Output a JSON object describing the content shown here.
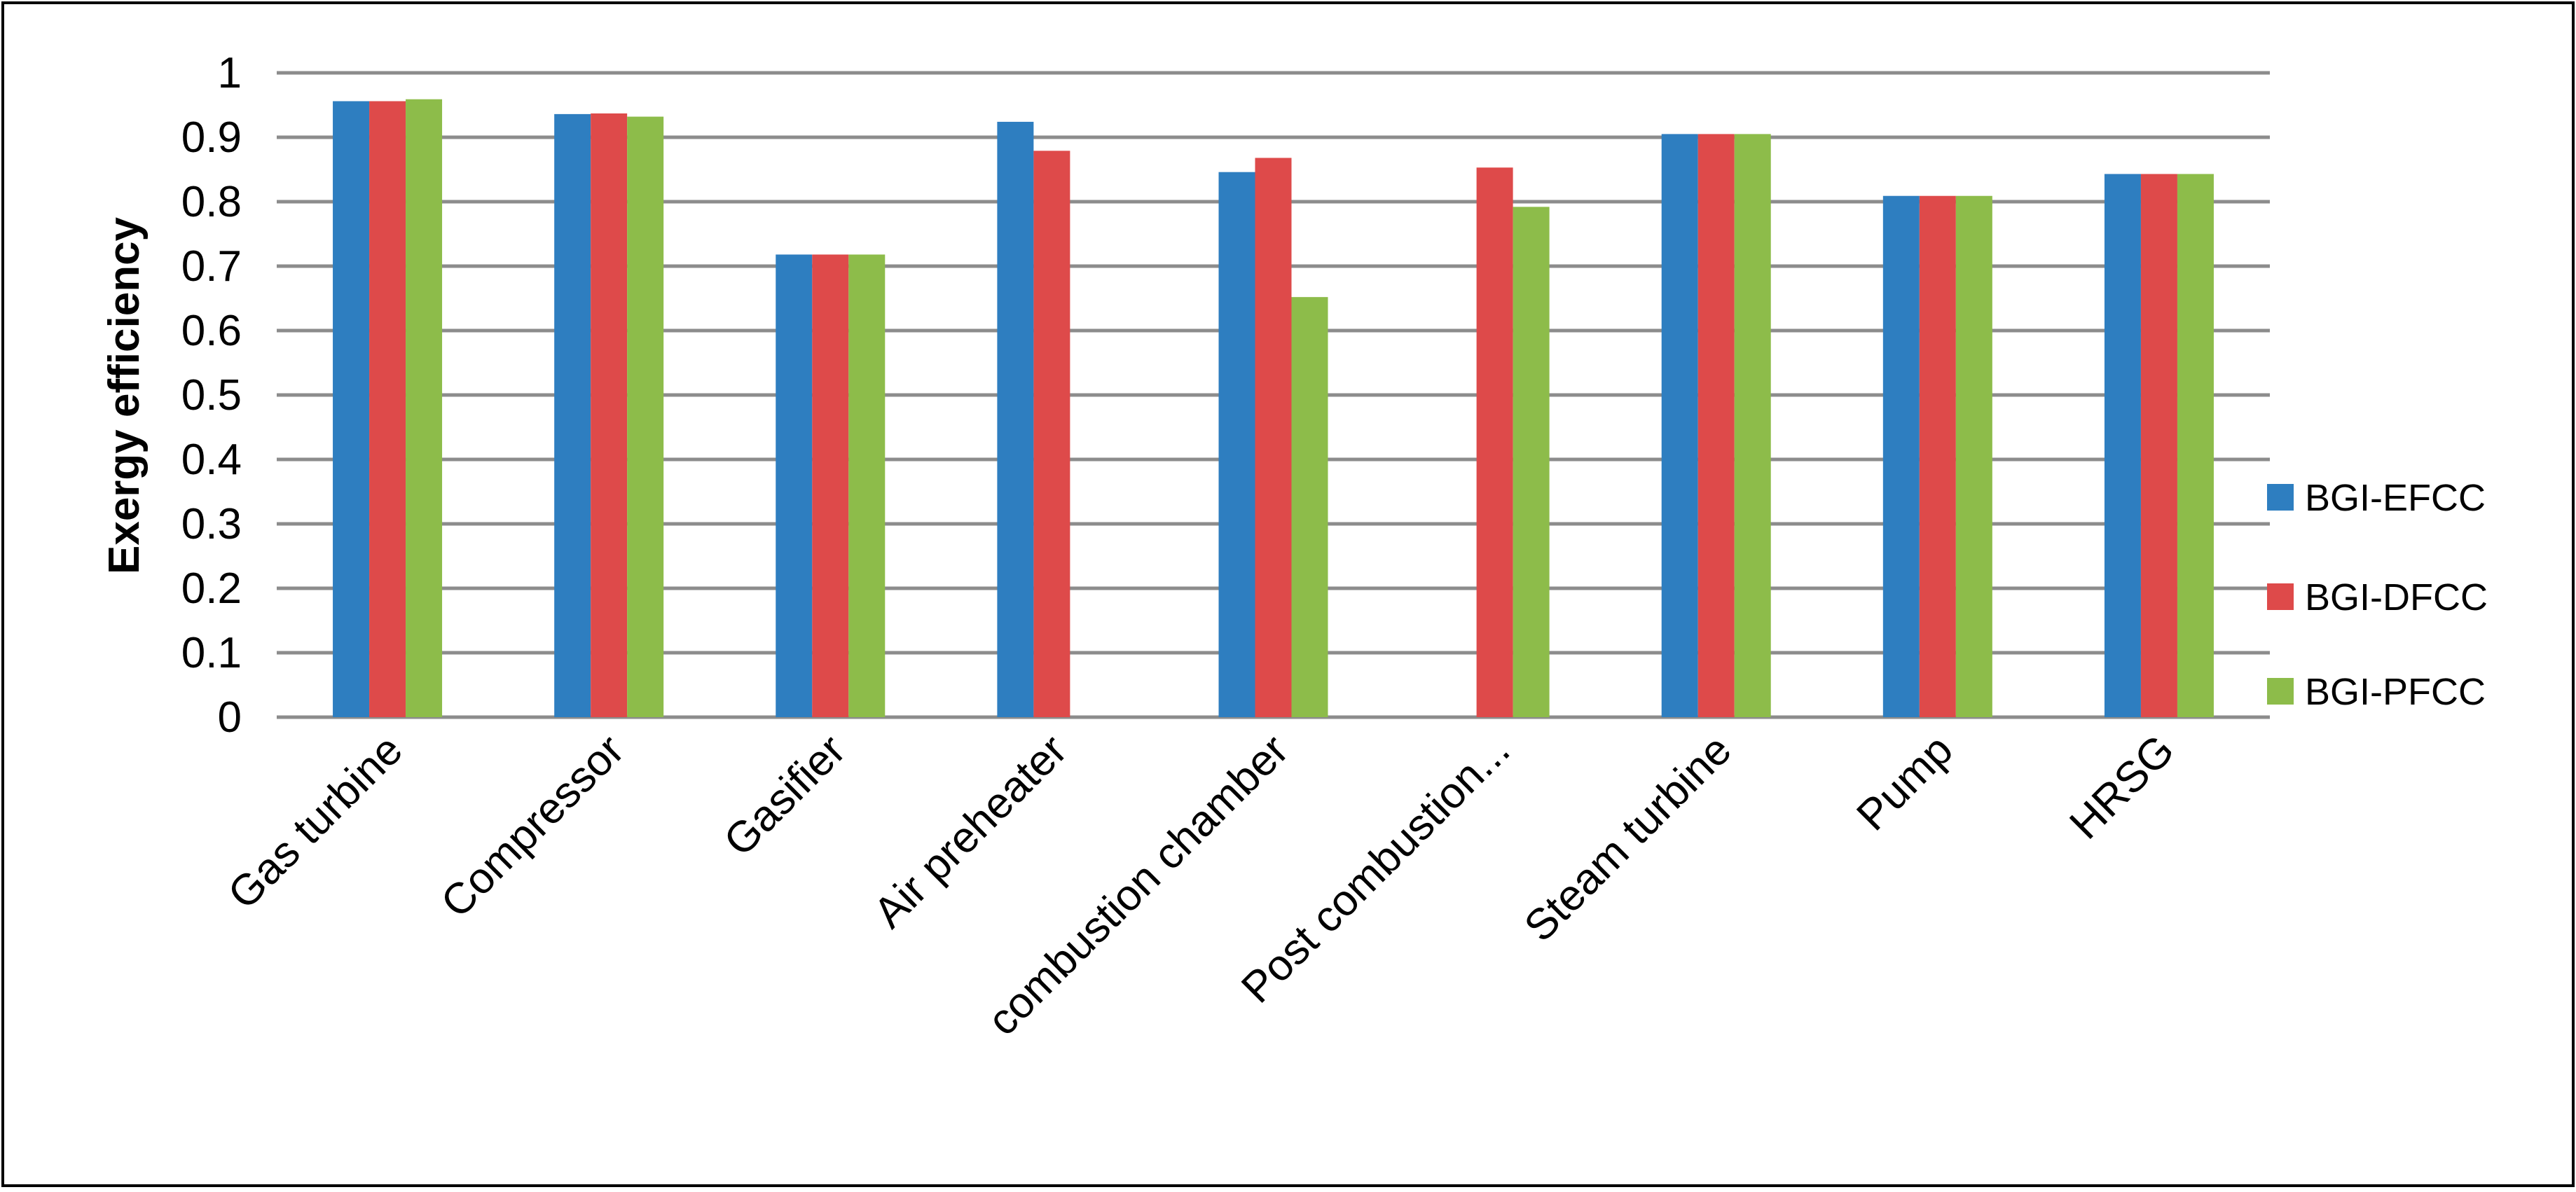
{
  "chart_data": {
    "type": "bar",
    "title": "",
    "xlabel": "",
    "ylabel": "Exergy efficiency",
    "ylim": [
      0,
      1
    ],
    "yticks": [
      "0",
      "0.1",
      "0.2",
      "0.3",
      "0.4",
      "0.5",
      "0.6",
      "0.7",
      "0.8",
      "0.9",
      "1"
    ],
    "grid": "horizontal",
    "legend_position": "right",
    "categories": [
      "Gas turbine",
      "Compressor",
      "Gasifier",
      "Air preheater",
      "combustion chamber",
      "Post combustion...",
      "Steam turbine",
      "Pump",
      "HRSG"
    ],
    "series": [
      {
        "name": "BGI-EFCC",
        "color": "#2e7ec0",
        "values": [
          0.956,
          0.936,
          0.718,
          0.924,
          0.846,
          null,
          0.905,
          0.809,
          0.843
        ]
      },
      {
        "name": "BGI-DFCC",
        "color": "#de4a4a",
        "values": [
          0.956,
          0.937,
          0.718,
          0.879,
          0.868,
          0.853,
          0.905,
          0.809,
          0.843
        ]
      },
      {
        "name": "BGI-PFCC",
        "color": "#8dbc4a",
        "values": [
          0.959,
          0.932,
          0.718,
          null,
          0.652,
          0.792,
          0.905,
          0.809,
          0.843
        ]
      }
    ]
  },
  "colors": {
    "grid": "#8c8c8c",
    "frame": "#000000",
    "background": "#ffffff"
  }
}
